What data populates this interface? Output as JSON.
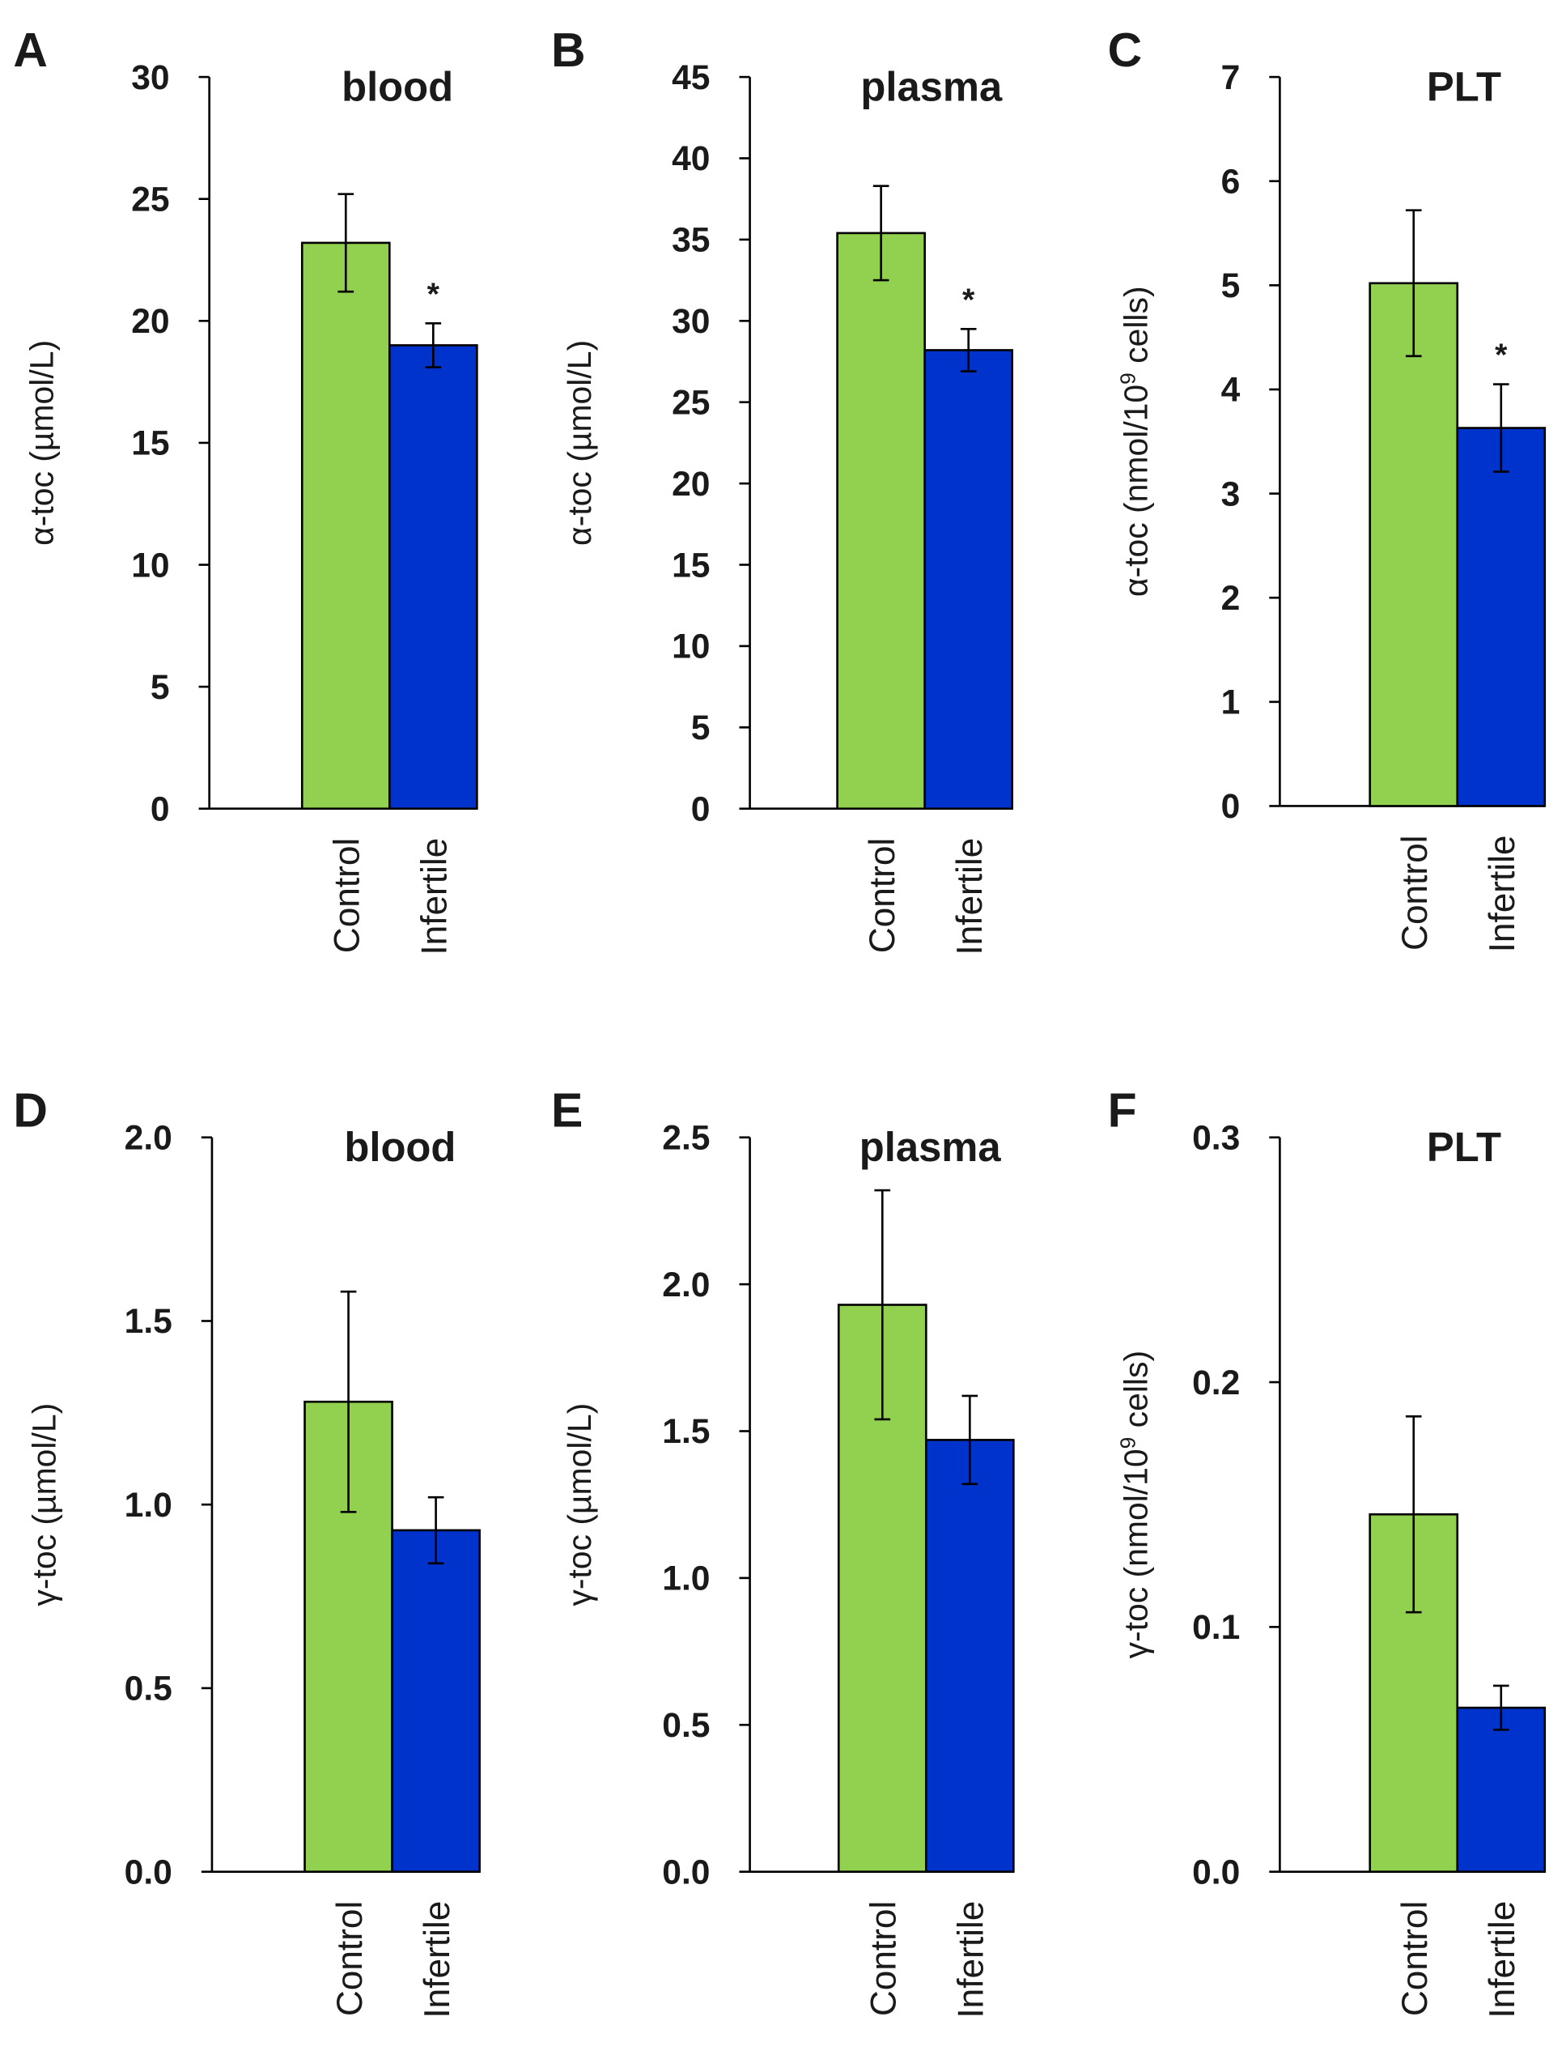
{
  "colors": {
    "control": "#92D050",
    "infertile": "#0033CC",
    "axis": "#000000"
  },
  "chart_data": [
    {
      "type": "bar",
      "panel": "A",
      "title": "blood",
      "ylabel": [
        "α-toc (µmol/L)"
      ],
      "ylim": [
        0,
        30
      ],
      "yticks": [
        "0",
        "5",
        "10",
        "15",
        "20",
        "25",
        "30"
      ],
      "categories": [
        "Control",
        "Infertile"
      ],
      "values": [
        23.2,
        19.0
      ],
      "errors": [
        2.0,
        0.9
      ],
      "annotations": [
        "",
        "*"
      ]
    },
    {
      "type": "bar",
      "panel": "B",
      "title": "plasma",
      "ylabel": [
        "α-toc (µmol/L)"
      ],
      "ylim": [
        0,
        45
      ],
      "yticks": [
        "0",
        "5",
        "10",
        "15",
        "20",
        "25",
        "30",
        "35",
        "40",
        "45"
      ],
      "categories": [
        "Control",
        "Infertile"
      ],
      "values": [
        35.4,
        28.2
      ],
      "errors": [
        2.9,
        1.3
      ],
      "annotations": [
        "",
        "*"
      ]
    },
    {
      "type": "bar",
      "panel": "C",
      "title": "PLT",
      "ylabel": [
        "α-toc (nmol/10",
        "9",
        " cells)"
      ],
      "ylim": [
        0,
        7
      ],
      "yticks": [
        "0",
        "1",
        "2",
        "3",
        "4",
        "5",
        "6",
        "7"
      ],
      "categories": [
        "Control",
        "Infertile"
      ],
      "values": [
        5.02,
        3.63
      ],
      "errors": [
        0.7,
        0.42
      ],
      "annotations": [
        "",
        "*"
      ]
    },
    {
      "type": "bar",
      "panel": "D",
      "title": "blood",
      "ylabel": [
        "γ-toc (µmol/L)"
      ],
      "ylim": [
        0,
        2.0
      ],
      "yticks": [
        "0.0",
        "0.5",
        "1.0",
        "1.5",
        "2.0"
      ],
      "categories": [
        "Control",
        "Infertile"
      ],
      "values": [
        1.28,
        0.93
      ],
      "errors": [
        0.3,
        0.09
      ],
      "annotations": [
        "",
        ""
      ]
    },
    {
      "type": "bar",
      "panel": "E",
      "title": "plasma",
      "ylabel": [
        "γ-toc (µmol/L)"
      ],
      "ylim": [
        0,
        2.5
      ],
      "yticks": [
        "0.0",
        "0.5",
        "1.0",
        "1.5",
        "2.0",
        "2.5"
      ],
      "categories": [
        "Control",
        "Infertile"
      ],
      "values": [
        1.93,
        1.47
      ],
      "errors": [
        0.39,
        0.15
      ],
      "annotations": [
        "",
        ""
      ]
    },
    {
      "type": "bar",
      "panel": "F",
      "title": "PLT",
      "ylabel": [
        "γ-toc (nmol/10",
        "9",
        " cells)"
      ],
      "ylim": [
        0,
        0.3
      ],
      "yticks": [
        "0.0",
        "0.1",
        "0.2",
        "0.3"
      ],
      "categories": [
        "Control",
        "Infertile"
      ],
      "values": [
        0.146,
        0.067
      ],
      "errors": [
        0.04,
        0.009
      ],
      "annotations": [
        "",
        ""
      ]
    }
  ]
}
